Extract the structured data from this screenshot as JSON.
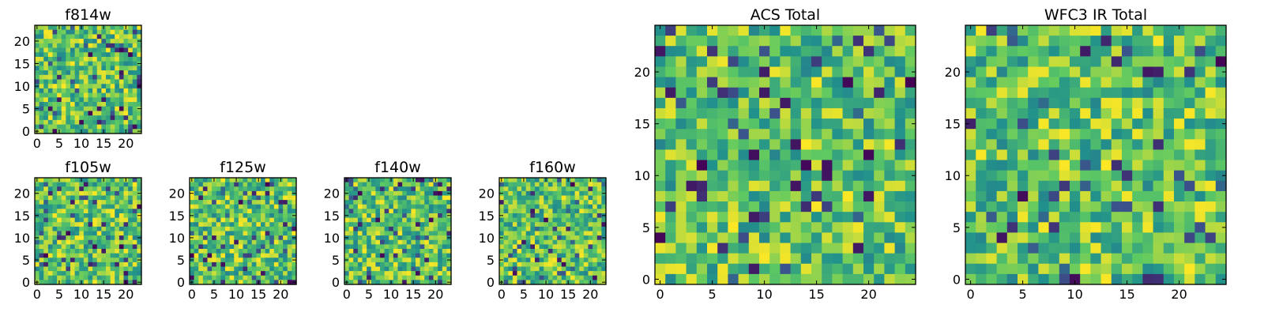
{
  "figure_title": "",
  "colormap": {
    "name": "viridis",
    "stops": [
      "#440154",
      "#3b528b",
      "#21918c",
      "#5ec962",
      "#fde725"
    ]
  },
  "chart_data": [
    {
      "type": "heatmap",
      "title": "f814w",
      "grid_size": [
        24,
        24
      ],
      "xlim": [
        -0.5,
        23.5
      ],
      "ylim": [
        -0.5,
        23.5
      ],
      "xticks": [
        "0",
        "5",
        "10",
        "15",
        "20"
      ],
      "yticks": [
        "0",
        "5",
        "10",
        "15",
        "20"
      ],
      "colormap": "viridis",
      "values": "24×24 pseudo-random pixel noise (values not individually readable)"
    },
    {
      "type": "heatmap",
      "title": "f105w",
      "grid_size": [
        24,
        24
      ],
      "xlim": [
        -0.5,
        23.5
      ],
      "ylim": [
        -0.5,
        23.5
      ],
      "xticks": [
        "0",
        "5",
        "10",
        "15",
        "20"
      ],
      "yticks": [
        "0",
        "5",
        "10",
        "15",
        "20"
      ],
      "colormap": "viridis",
      "values": "24×24 pseudo-random pixel noise (values not individually readable)"
    },
    {
      "type": "heatmap",
      "title": "f125w",
      "grid_size": [
        24,
        24
      ],
      "xlim": [
        -0.5,
        23.5
      ],
      "ylim": [
        -0.5,
        23.5
      ],
      "xticks": [
        "0",
        "5",
        "10",
        "15",
        "20"
      ],
      "yticks": [
        "0",
        "5",
        "10",
        "15",
        "20"
      ],
      "colormap": "viridis",
      "values": "24×24 pseudo-random pixel noise (values not individually readable)"
    },
    {
      "type": "heatmap",
      "title": "f140w",
      "grid_size": [
        24,
        24
      ],
      "xlim": [
        -0.5,
        23.5
      ],
      "ylim": [
        -0.5,
        23.5
      ],
      "xticks": [
        "0",
        "5",
        "10",
        "15",
        "20"
      ],
      "yticks": [
        "0",
        "5",
        "10",
        "15",
        "20"
      ],
      "colormap": "viridis",
      "values": "24×24 pseudo-random pixel noise (values not individually readable)"
    },
    {
      "type": "heatmap",
      "title": "f160w",
      "grid_size": [
        24,
        24
      ],
      "xlim": [
        -0.5,
        23.5
      ],
      "ylim": [
        -0.5,
        23.5
      ],
      "xticks": [
        "0",
        "5",
        "10",
        "15",
        "20"
      ],
      "yticks": [
        "0",
        "5",
        "10",
        "15",
        "20"
      ],
      "colormap": "viridis",
      "values": "24×24 pseudo-random pixel noise (values not individually readable)"
    },
    {
      "type": "heatmap",
      "title": "ACS Total",
      "grid_size": [
        25,
        25
      ],
      "xlim": [
        -0.5,
        24.5
      ],
      "ylim": [
        -0.5,
        24.5
      ],
      "xticks": [
        "0",
        "5",
        "10",
        "15",
        "20"
      ],
      "yticks": [
        "0",
        "5",
        "10",
        "15",
        "20"
      ],
      "colormap": "viridis",
      "values": "25×25 pseudo-random pixel noise (values not individually readable)"
    },
    {
      "type": "heatmap",
      "title": "WFC3 IR Total",
      "grid_size": [
        25,
        25
      ],
      "xlim": [
        -0.5,
        24.5
      ],
      "ylim": [
        -0.5,
        24.5
      ],
      "xticks": [
        "0",
        "5",
        "10",
        "15",
        "20"
      ],
      "yticks": [
        "0",
        "5",
        "10",
        "15",
        "20"
      ],
      "colormap": "viridis",
      "values": "25×25 pseudo-random pixel noise (values not individually readable)"
    }
  ]
}
